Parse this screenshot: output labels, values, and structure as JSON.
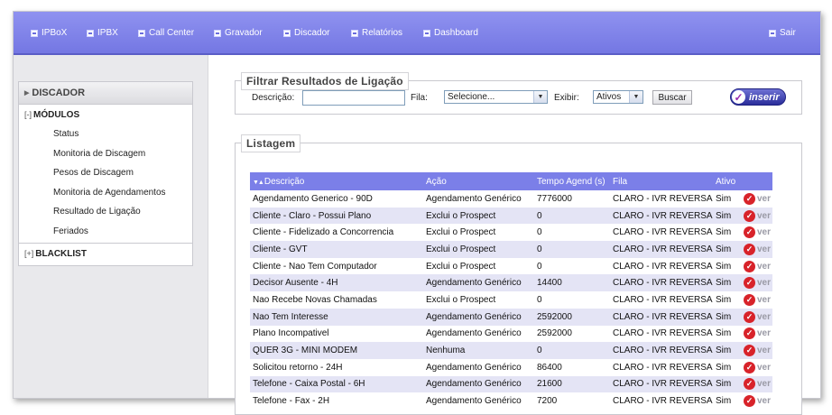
{
  "nav": {
    "items": [
      {
        "label": "IPBoX"
      },
      {
        "label": "IPBX"
      },
      {
        "label": "Call Center"
      },
      {
        "label": "Gravador"
      },
      {
        "label": "Discador"
      },
      {
        "label": "Relatórios"
      },
      {
        "label": "Dashboard"
      }
    ],
    "logout": "Sair"
  },
  "sidebar": {
    "header": "DISCADOR",
    "groups": [
      {
        "toggle": "[-]",
        "label": "MÓDULOS"
      },
      {
        "toggle": "[+]",
        "label": "BLACKLIST"
      }
    ],
    "items": [
      {
        "label": "Status"
      },
      {
        "label": "Monitoria de Discagem"
      },
      {
        "label": "Pesos de Discagem"
      },
      {
        "label": "Monitoria de Agendamentos"
      },
      {
        "label": "Resultado de Ligação"
      },
      {
        "label": "Feriados"
      }
    ]
  },
  "filter": {
    "title": "Filtrar Resultados de Ligação",
    "descricao_label": "Descrição:",
    "descricao_value": "",
    "fila_label": "Fila:",
    "fila_selected": "Selecione...",
    "exibir_label": "Exibir:",
    "exibir_selected": "Ativos",
    "search_button": "Buscar",
    "insert_button": "inserir"
  },
  "listing": {
    "title": "Listagem",
    "headers": {
      "descricao": "Descrição",
      "acao": "Ação",
      "tempo": "Tempo Agend (s)",
      "fila": "Fila",
      "ativo": "Ativo"
    },
    "view_label": "ver",
    "rows": [
      {
        "descricao": "Agendamento Generico - 90D",
        "acao": "Agendamento Genérico",
        "tempo": "7776000",
        "fila": "CLARO - IVR REVERSA",
        "ativo": "Sim"
      },
      {
        "descricao": "Cliente - Claro - Possui Plano",
        "acao": "Exclui o Prospect",
        "tempo": "0",
        "fila": "CLARO - IVR REVERSA",
        "ativo": "Sim"
      },
      {
        "descricao": "Cliente - Fidelizado a Concorrencia",
        "acao": "Exclui o Prospect",
        "tempo": "0",
        "fila": "CLARO - IVR REVERSA",
        "ativo": "Sim"
      },
      {
        "descricao": "Cliente - GVT",
        "acao": "Exclui o Prospect",
        "tempo": "0",
        "fila": "CLARO - IVR REVERSA",
        "ativo": "Sim"
      },
      {
        "descricao": "Cliente - Nao Tem Computador",
        "acao": "Exclui o Prospect",
        "tempo": "0",
        "fila": "CLARO - IVR REVERSA",
        "ativo": "Sim"
      },
      {
        "descricao": "Decisor Ausente - 4H",
        "acao": "Agendamento Genérico",
        "tempo": "14400",
        "fila": "CLARO - IVR REVERSA",
        "ativo": "Sim"
      },
      {
        "descricao": "Nao Recebe Novas Chamadas",
        "acao": "Exclui o Prospect",
        "tempo": "0",
        "fila": "CLARO - IVR REVERSA",
        "ativo": "Sim"
      },
      {
        "descricao": "Nao Tem Interesse",
        "acao": "Agendamento Genérico",
        "tempo": "2592000",
        "fila": "CLARO - IVR REVERSA",
        "ativo": "Sim"
      },
      {
        "descricao": "Plano Incompativel",
        "acao": "Agendamento Genérico",
        "tempo": "2592000",
        "fila": "CLARO - IVR REVERSA",
        "ativo": "Sim"
      },
      {
        "descricao": "QUER 3G - MINI MODEM",
        "acao": "Nenhuma",
        "tempo": "0",
        "fila": "CLARO - IVR REVERSA",
        "ativo": "Sim"
      },
      {
        "descricao": "Solicitou retorno - 24H",
        "acao": "Agendamento Genérico",
        "tempo": "86400",
        "fila": "CLARO - IVR REVERSA",
        "ativo": "Sim"
      },
      {
        "descricao": "Telefone - Caixa Postal - 6H",
        "acao": "Agendamento Genérico",
        "tempo": "21600",
        "fila": "CLARO - IVR REVERSA",
        "ativo": "Sim"
      },
      {
        "descricao": "Telefone - Fax - 2H",
        "acao": "Agendamento Genérico",
        "tempo": "7200",
        "fila": "CLARO - IVR REVERSA",
        "ativo": "Sim"
      }
    ]
  }
}
